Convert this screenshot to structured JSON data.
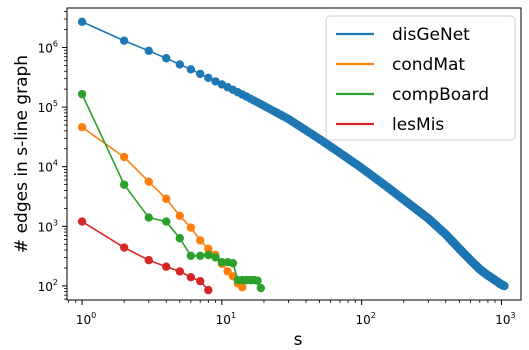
{
  "chart_data": {
    "type": "line",
    "title": "",
    "xlabel": "s",
    "ylabel": "# edges in s-line graph",
    "xscale": "log",
    "yscale": "log",
    "xlim": [
      0.78,
      1380
    ],
    "ylim": [
      58,
      4600000
    ],
    "grid": false,
    "legend_position": "top-right",
    "x_ticks": [
      {
        "value": 1,
        "base": "10",
        "exp": "0"
      },
      {
        "value": 10,
        "base": "10",
        "exp": "1"
      },
      {
        "value": 100,
        "base": "10",
        "exp": "2"
      },
      {
        "value": 1000,
        "base": "10",
        "exp": "3"
      }
    ],
    "y_ticks": [
      {
        "value": 100,
        "base": "10",
        "exp": "2"
      },
      {
        "value": 1000,
        "base": "10",
        "exp": "3"
      },
      {
        "value": 10000,
        "base": "10",
        "exp": "4"
      },
      {
        "value": 100000,
        "base": "10",
        "exp": "5"
      },
      {
        "value": 1000000,
        "base": "10",
        "exp": "6"
      }
    ],
    "series": [
      {
        "name": "disGeNet",
        "color": "#1f77b4",
        "dense_curve": true,
        "x": [
          1,
          2,
          3,
          4,
          5,
          6,
          7,
          8,
          9,
          10,
          12,
          15,
          20,
          30,
          50,
          70,
          100,
          150,
          200,
          300,
          400,
          500,
          600,
          700,
          800,
          900,
          1000,
          1050
        ],
        "y": [
          2700000,
          1300000,
          880000,
          660000,
          520000,
          430000,
          360000,
          310000,
          270000,
          240000,
          195000,
          150000,
          105000,
          63000,
          29000,
          17000,
          9500,
          4700,
          2800,
          1350,
          730,
          420,
          270,
          190,
          150,
          125,
          105,
          100
        ]
      },
      {
        "name": "condMat",
        "color": "#ff7f0e",
        "dense_curve": false,
        "x": [
          1,
          2,
          3,
          4,
          5,
          6,
          7,
          8,
          9,
          10,
          11,
          12,
          13,
          14
        ],
        "y": [
          46000,
          14500,
          5600,
          2900,
          1500,
          950,
          580,
          420,
          330,
          235,
          175,
          145,
          110,
          95
        ]
      },
      {
        "name": "compBoard",
        "color": "#2ca02c",
        "dense_curve": false,
        "x": [
          1,
          2,
          3,
          4,
          5,
          6,
          7,
          8,
          9,
          10,
          11,
          12,
          13,
          14,
          15,
          16,
          17,
          18,
          19
        ],
        "y": [
          165000,
          5000,
          1400,
          1200,
          630,
          320,
          320,
          330,
          300,
          250,
          250,
          240,
          125,
          125,
          125,
          125,
          125,
          122,
          92
        ]
      },
      {
        "name": "lesMis",
        "color": "#d62728",
        "dense_curve": false,
        "x": [
          1,
          2,
          3,
          4,
          5,
          6,
          7,
          8
        ],
        "y": [
          1200,
          440,
          270,
          210,
          175,
          140,
          120,
          85
        ]
      }
    ]
  }
}
